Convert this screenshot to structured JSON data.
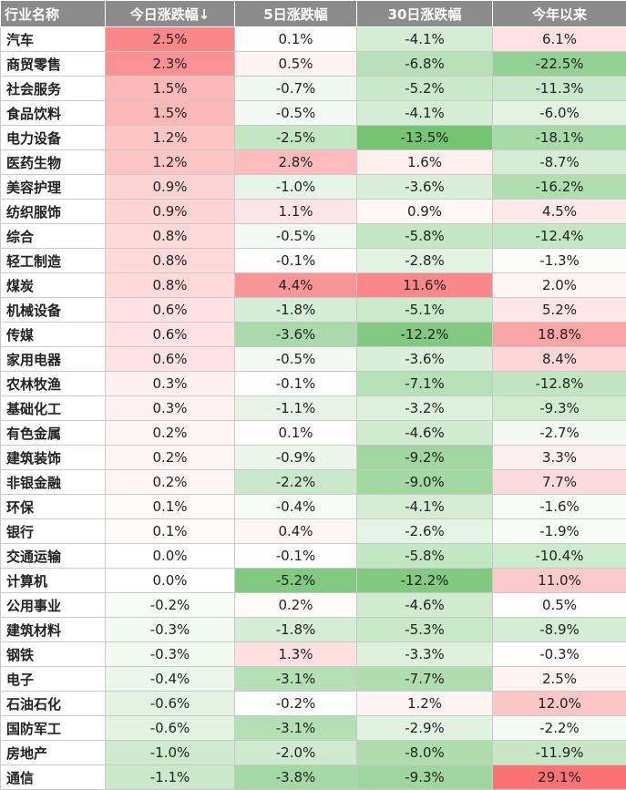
{
  "table": {
    "headers": [
      "行业名称",
      "今日涨跌幅↓",
      "5日涨跌幅",
      "30日涨跌幅",
      "今年以来"
    ],
    "rows": [
      {
        "name": "汽车",
        "d1": "2.5%",
        "d5": "0.1%",
        "d30": "-4.1%",
        "ytd": "6.1%"
      },
      {
        "name": "商贸零售",
        "d1": "2.3%",
        "d5": "0.5%",
        "d30": "-6.8%",
        "ytd": "-22.5%"
      },
      {
        "name": "社会服务",
        "d1": "1.5%",
        "d5": "-0.7%",
        "d30": "-5.2%",
        "ytd": "-11.3%"
      },
      {
        "name": "食品饮料",
        "d1": "1.5%",
        "d5": "-0.5%",
        "d30": "-4.1%",
        "ytd": "-6.0%"
      },
      {
        "name": "电力设备",
        "d1": "1.2%",
        "d5": "-2.5%",
        "d30": "-13.5%",
        "ytd": "-18.1%"
      },
      {
        "name": "医药生物",
        "d1": "1.2%",
        "d5": "2.8%",
        "d30": "1.6%",
        "ytd": "-8.7%"
      },
      {
        "name": "美容护理",
        "d1": "0.9%",
        "d5": "-1.0%",
        "d30": "-3.6%",
        "ytd": "-16.2%"
      },
      {
        "name": "纺织服饰",
        "d1": "0.9%",
        "d5": "1.1%",
        "d30": "0.9%",
        "ytd": "4.5%"
      },
      {
        "name": "综合",
        "d1": "0.8%",
        "d5": "-0.5%",
        "d30": "-5.8%",
        "ytd": "-12.4%"
      },
      {
        "name": "轻工制造",
        "d1": "0.8%",
        "d5": "-0.1%",
        "d30": "-2.8%",
        "ytd": "-1.3%"
      },
      {
        "name": "煤炭",
        "d1": "0.8%",
        "d5": "4.4%",
        "d30": "11.6%",
        "ytd": "2.0%"
      },
      {
        "name": "机械设备",
        "d1": "0.6%",
        "d5": "-1.8%",
        "d30": "-5.1%",
        "ytd": "5.2%"
      },
      {
        "name": "传媒",
        "d1": "0.6%",
        "d5": "-3.6%",
        "d30": "-12.2%",
        "ytd": "18.8%"
      },
      {
        "name": "家用电器",
        "d1": "0.6%",
        "d5": "-0.5%",
        "d30": "-3.6%",
        "ytd": "8.4%"
      },
      {
        "name": "农林牧渔",
        "d1": "0.3%",
        "d5": "-0.1%",
        "d30": "-7.1%",
        "ytd": "-12.8%"
      },
      {
        "name": "基础化工",
        "d1": "0.3%",
        "d5": "-1.1%",
        "d30": "-3.2%",
        "ytd": "-9.3%"
      },
      {
        "name": "有色金属",
        "d1": "0.2%",
        "d5": "0.1%",
        "d30": "-4.6%",
        "ytd": "-2.7%"
      },
      {
        "name": "建筑装饰",
        "d1": "0.2%",
        "d5": "-0.9%",
        "d30": "-9.2%",
        "ytd": "3.3%"
      },
      {
        "name": "非银金融",
        "d1": "0.2%",
        "d5": "-2.2%",
        "d30": "-9.0%",
        "ytd": "7.7%"
      },
      {
        "name": "环保",
        "d1": "0.1%",
        "d5": "-0.4%",
        "d30": "-4.1%",
        "ytd": "-1.6%"
      },
      {
        "name": "银行",
        "d1": "0.1%",
        "d5": "0.4%",
        "d30": "-2.6%",
        "ytd": "-1.9%"
      },
      {
        "name": "交通运输",
        "d1": "0.0%",
        "d5": "-0.1%",
        "d30": "-5.8%",
        "ytd": "-10.4%"
      },
      {
        "name": "计算机",
        "d1": "0.0%",
        "d5": "-5.2%",
        "d30": "-12.2%",
        "ytd": "11.0%"
      },
      {
        "name": "公用事业",
        "d1": "-0.2%",
        "d5": "0.2%",
        "d30": "-4.6%",
        "ytd": "0.5%"
      },
      {
        "name": "建筑材料",
        "d1": "-0.3%",
        "d5": "-1.8%",
        "d30": "-5.3%",
        "ytd": "-8.9%"
      },
      {
        "name": "钢铁",
        "d1": "-0.3%",
        "d5": "1.3%",
        "d30": "-3.3%",
        "ytd": "-0.3%"
      },
      {
        "name": "电子",
        "d1": "-0.4%",
        "d5": "-3.1%",
        "d30": "-7.7%",
        "ytd": "2.5%"
      },
      {
        "name": "石油石化",
        "d1": "-0.6%",
        "d5": "-0.2%",
        "d30": "1.2%",
        "ytd": "12.0%"
      },
      {
        "name": "国防军工",
        "d1": "-0.6%",
        "d5": "-3.1%",
        "d30": "-2.9%",
        "ytd": "-2.2%"
      },
      {
        "name": "房地产",
        "d1": "-1.0%",
        "d5": "-2.0%",
        "d30": "-8.0%",
        "ytd": "-11.9%"
      },
      {
        "name": "通信",
        "d1": "-1.1%",
        "d5": "-3.8%",
        "d30": "-9.3%",
        "ytd": "29.1%"
      }
    ]
  },
  "colors": {
    "header_bg": "#8c8c8c",
    "header_text": "#ffffff",
    "positive_max": "#f85f62",
    "negative_max": "#5fbb5f",
    "neutral": "#ffffff"
  }
}
